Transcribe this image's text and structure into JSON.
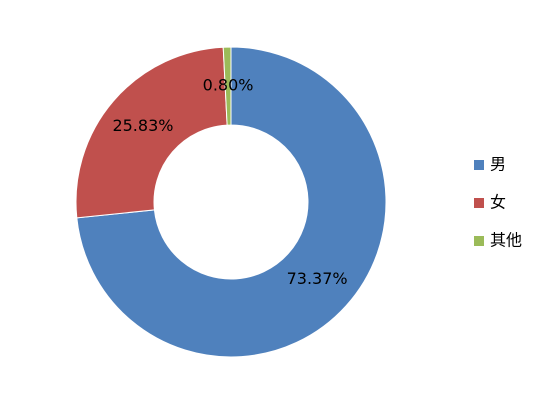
{
  "chart_data": {
    "type": "pie",
    "categories": [
      "男",
      "女",
      "其他"
    ],
    "values": [
      73.37,
      25.83,
      0.8
    ],
    "value_labels": [
      "73.37%",
      "25.83%",
      "0.80%"
    ],
    "colors": [
      "#4f81bd",
      "#c0504d",
      "#9bbb59"
    ],
    "legend": "right"
  }
}
